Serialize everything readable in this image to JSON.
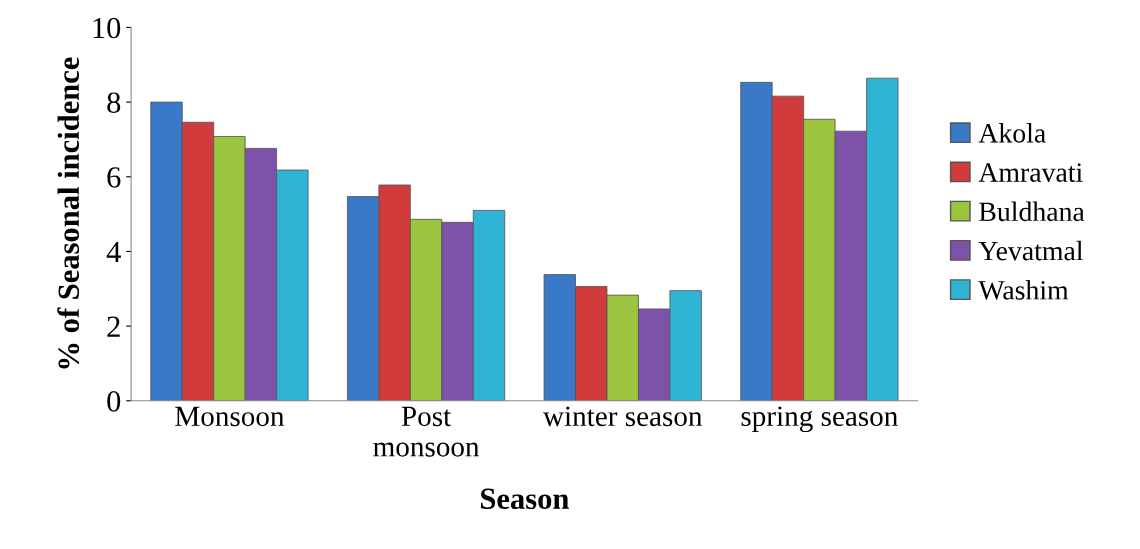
{
  "chart_data": {
    "type": "bar",
    "xlabel": "Season",
    "ylabel": "% of Seasonal incidence",
    "categories": [
      "Monsoon",
      "Post\nmonsoon",
      "winter season",
      "spring season"
    ],
    "series": [
      {
        "name": "Akola",
        "color": "#3a78c8",
        "values": [
          8.0,
          5.47,
          3.38,
          8.53
        ]
      },
      {
        "name": "Amravati",
        "color": "#d23b3b",
        "values": [
          7.46,
          5.78,
          3.06,
          8.16
        ]
      },
      {
        "name": "Buldhana",
        "color": "#9bc43f",
        "values": [
          7.08,
          4.86,
          2.83,
          7.54
        ]
      },
      {
        "name": "Yevatmal",
        "color": "#7d52a8",
        "values": [
          6.76,
          4.78,
          2.46,
          7.22
        ]
      },
      {
        "name": "Washim",
        "color": "#2fb4d6",
        "values": [
          6.18,
          5.1,
          2.95,
          8.64
        ]
      }
    ],
    "ylim": [
      0,
      10
    ],
    "yticks": [
      0,
      2,
      4,
      6,
      8,
      10
    ],
    "grid": false,
    "legend": "right"
  }
}
